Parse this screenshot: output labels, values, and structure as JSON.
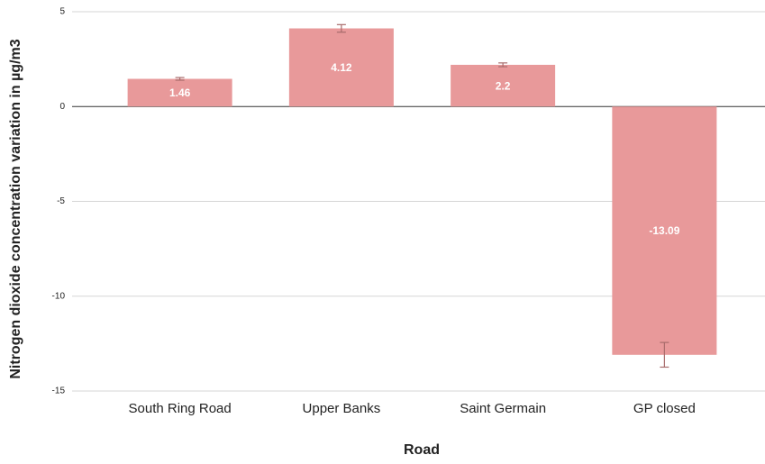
{
  "chart_data": {
    "type": "bar",
    "x_label": "Road",
    "y_label": "Nitrogen dioxide concentration variation in µg/m3",
    "categories": [
      "South Ring Road",
      "Upper Banks",
      "Saint Germain",
      "GP closed"
    ],
    "values": [
      1.46,
      4.12,
      2.2,
      -13.09
    ],
    "errors": [
      0.07,
      0.2,
      0.1,
      0.65
    ],
    "color": "#e8999a",
    "error_color": "#a86b6b",
    "ylim": [
      -15,
      5
    ],
    "yticks": [
      -15,
      -10,
      -5,
      0,
      5
    ],
    "grid": true
  }
}
